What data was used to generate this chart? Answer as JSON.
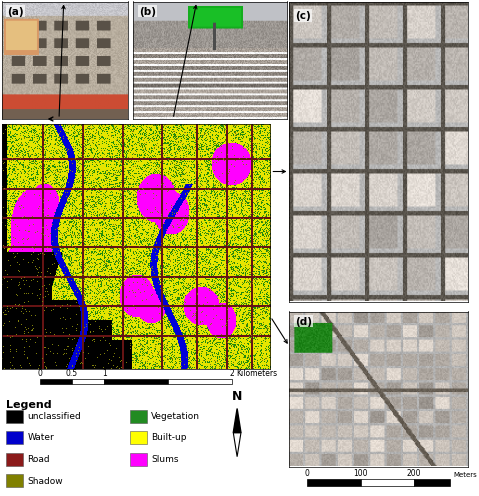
{
  "bg_color": "#FFFFFF",
  "legend_title": "Legend",
  "legend_left": [
    {
      "label": "unclassified",
      "color": "#000000"
    },
    {
      "label": "Water",
      "color": "#0000CC"
    },
    {
      "label": "Road",
      "color": "#8B1A1A"
    },
    {
      "label": "Shadow",
      "color": "#808000"
    }
  ],
  "legend_right": [
    {
      "label": "Vegetation",
      "color": "#228B22"
    },
    {
      "label": "Built-up",
      "color": "#FFFF00"
    },
    {
      "label": "Slums",
      "color": "#FF00FF"
    }
  ],
  "panel_labels": [
    "(a)",
    "(b)",
    "(c)",
    "(d)"
  ],
  "scale_km": [
    "0",
    "0.5",
    "1",
    "2",
    "Kilometers"
  ],
  "scale_m": [
    "0",
    "100",
    "200",
    "Meters"
  ]
}
